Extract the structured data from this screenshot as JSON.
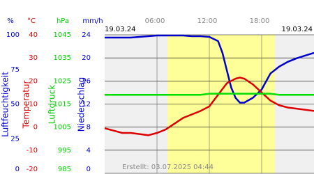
{
  "chart_data": {
    "type": "line",
    "date_start": "19.03.24",
    "date_end": "19.03.24",
    "footer": "Erstellt: 03.07.2025 04:44",
    "xlim": [
      0,
      24
    ],
    "xticks": [
      {
        "value": 6,
        "label": "06:00"
      },
      {
        "value": 12,
        "label": "12:00"
      },
      {
        "value": 18,
        "label": "18:00"
      }
    ],
    "daylight": [
      7.2,
      19.5
    ],
    "axes": [
      {
        "title": "Luftfeuchtigkeit",
        "unit": "%",
        "color": "#0000cc",
        "lim": [
          0,
          100
        ],
        "ticks": [
          0,
          25,
          50,
          75,
          100
        ]
      },
      {
        "title": "Temperatur",
        "unit": "°C",
        "color": "#dd0000",
        "lim": [
          -20,
          40
        ],
        "ticks": [
          -20,
          -10,
          0,
          10,
          20,
          30,
          40
        ]
      },
      {
        "title": "Luftdruck",
        "unit": "hPa",
        "color": "#00cc00",
        "lim": [
          985,
          1045
        ],
        "ticks": [
          985,
          995,
          1005,
          1015,
          1025,
          1035,
          1045
        ]
      },
      {
        "title": "Niederschlag",
        "unit": "mm/h",
        "color": "#0000cc",
        "lim": [
          0,
          24
        ],
        "ticks": [
          0,
          4,
          8,
          12,
          16,
          20,
          24
        ]
      }
    ],
    "x": [
      0,
      1,
      2,
      3,
      4,
      5,
      6,
      7,
      8,
      9,
      10,
      11,
      12,
      13,
      13.5,
      14,
      14.5,
      15,
      15.5,
      16,
      17,
      18,
      19,
      20,
      21,
      22,
      23,
      24
    ],
    "series": [
      {
        "axis": 0,
        "color": "#0000cc",
        "values": [
          98,
          98,
          98,
          98,
          98.5,
          99,
          99.5,
          99.5,
          99.5,
          99.5,
          99,
          99,
          98.5,
          95.5,
          87,
          74.5,
          62,
          54.5,
          51,
          51,
          54.5,
          60.5,
          72,
          77,
          80.5,
          83,
          85,
          87
        ]
      },
      {
        "axis": 1,
        "color": "#dd0000",
        "values": [
          -0.5,
          -1.5,
          -2.5,
          -2.5,
          -3,
          -3.5,
          -2.5,
          -1,
          1.5,
          4,
          5.5,
          7,
          9,
          14,
          16.5,
          19,
          20,
          21,
          21.5,
          21,
          18.5,
          15,
          11.5,
          9.5,
          8.5,
          8,
          7.5,
          7
        ]
      },
      {
        "axis": 2,
        "color": "#00dd00",
        "values": [
          1019,
          1019,
          1019,
          1019,
          1019,
          1019,
          1019,
          1019,
          1019,
          1019,
          1019,
          1019,
          1019.5,
          1019.5,
          1019.5,
          1019.5,
          1019.5,
          1019.5,
          1019.5,
          1019.5,
          1019.5,
          1019.5,
          1019.5,
          1019,
          1019,
          1019,
          1019,
          1019
        ]
      }
    ]
  }
}
